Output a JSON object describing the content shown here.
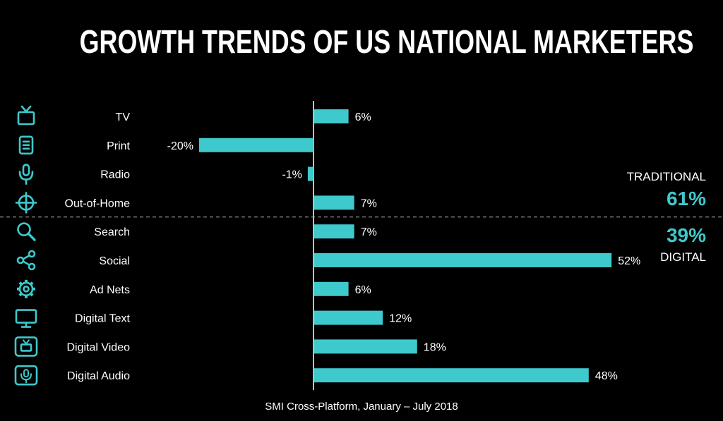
{
  "title": "GROWTH TRENDS OF US NATIONAL MARKETERS",
  "footer": "SMI Cross-Platform, January – July 2018",
  "side": {
    "traditional_label": "TRADITIONAL",
    "traditional_pct": "61%",
    "digital_pct": "39%",
    "digital_label": "DIGITAL"
  },
  "colors": {
    "bar": "#3ec9cc",
    "background": "#000000",
    "text": "#ffffff"
  },
  "chart_data": {
    "type": "bar",
    "orientation": "horizontal",
    "categories": [
      "TV",
      "Print",
      "Radio",
      "Out-of-Home",
      "Search",
      "Social",
      "Ad Nets",
      "Digital Text",
      "Digital Video",
      "Digital Audio"
    ],
    "values": [
      6,
      -20,
      -1,
      7,
      7,
      52,
      6,
      12,
      18,
      48
    ],
    "value_labels": [
      "6%",
      "-20%",
      "-1%",
      "7%",
      "7%",
      "52%",
      "6%",
      "12%",
      "18%",
      "48%"
    ],
    "icons": [
      "tv-icon",
      "document-icon",
      "microphone-icon",
      "crosshair-icon",
      "search-icon",
      "share-icon",
      "gear-icon",
      "monitor-icon",
      "video-icon",
      "audio-device-icon"
    ],
    "groups": [
      {
        "name": "TRADITIONAL",
        "share": "61%",
        "categories": [
          "TV",
          "Print",
          "Radio",
          "Out-of-Home"
        ]
      },
      {
        "name": "DIGITAL",
        "share": "39%",
        "categories": [
          "Search",
          "Social",
          "Ad Nets",
          "Digital Text",
          "Digital Video",
          "Digital Audio"
        ]
      }
    ],
    "unit": "%",
    "grid": false,
    "legend": "none"
  }
}
